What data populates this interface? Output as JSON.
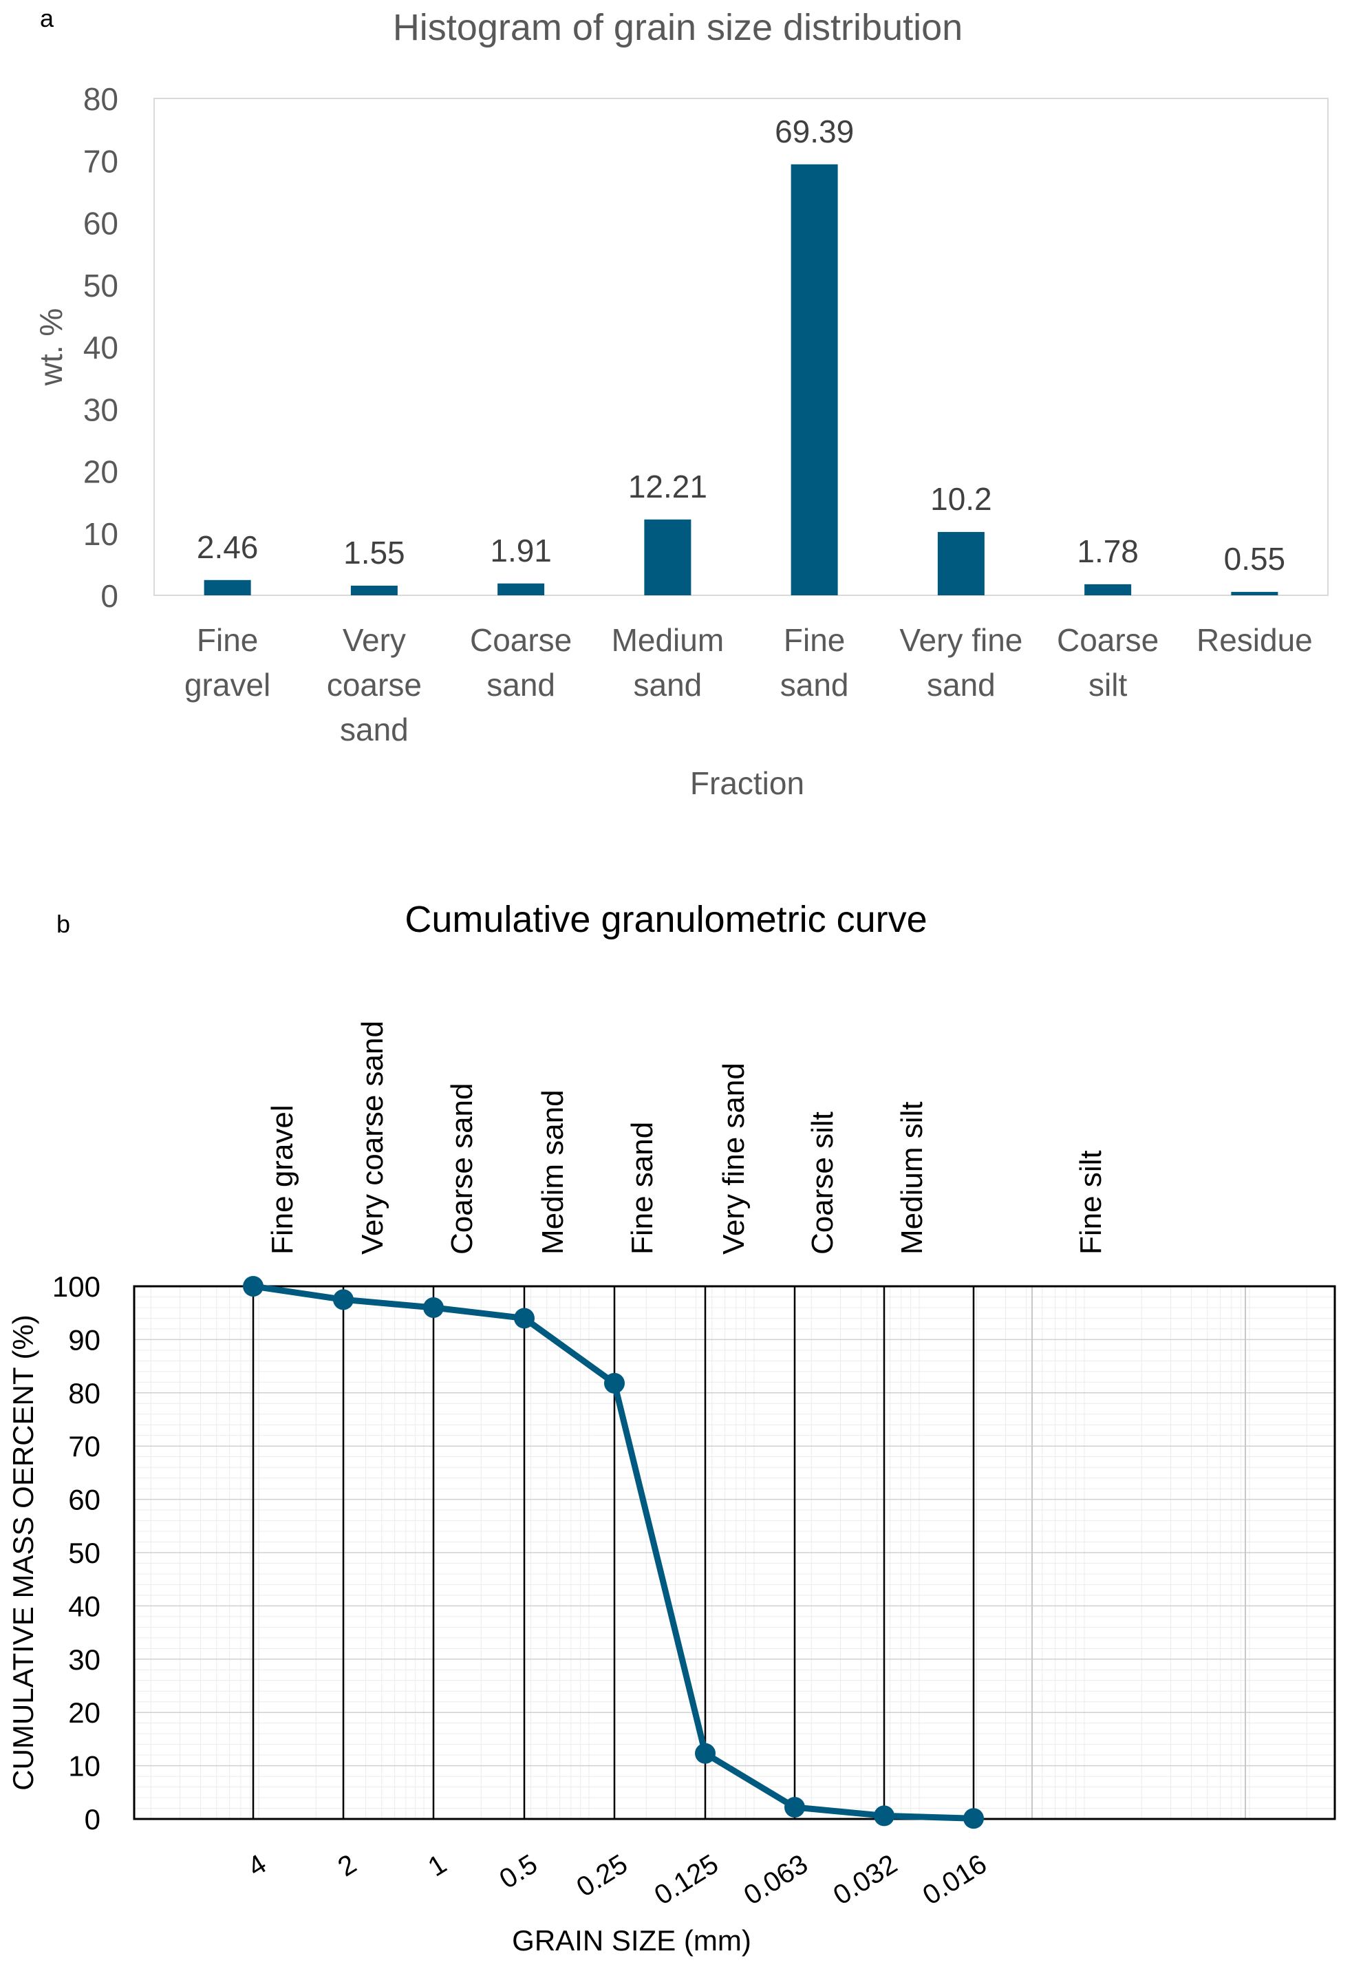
{
  "chart_data": [
    {
      "panel_label": "a",
      "type": "bar",
      "title": "Histogram of grain size distribution",
      "xlabel": "Fraction",
      "ylabel": "wt. %",
      "ylim": [
        0,
        80
      ],
      "yticks": [
        "0",
        "10",
        "20",
        "30",
        "40",
        "50",
        "60",
        "70",
        "80"
      ],
      "categories": [
        [
          "Fine",
          "gravel"
        ],
        [
          "Very",
          "coarse",
          "sand"
        ],
        [
          "Coarse",
          "sand"
        ],
        [
          "Medium",
          "sand"
        ],
        [
          "Fine",
          "sand"
        ],
        [
          "Very fine",
          "sand"
        ],
        [
          "Coarse",
          "silt"
        ],
        [
          "Residue"
        ]
      ],
      "values": [
        2.46,
        1.55,
        1.91,
        12.21,
        69.39,
        10.2,
        1.78,
        0.55
      ],
      "data_labels": [
        "2.46",
        "1.55",
        "1.91",
        "12.21",
        "69.39",
        "10.2",
        "1.78",
        "0.55"
      ],
      "bar_color": "#005a80"
    },
    {
      "panel_label": "b",
      "type": "line",
      "title": "Cumulative granulometric curve",
      "xlabel": "GRAIN SIZE (mm)",
      "ylabel": "CUMULATIVE MASS OERCENT (%)",
      "ylim": [
        0,
        100
      ],
      "yticks": [
        "0",
        "10",
        "20",
        "30",
        "40",
        "50",
        "60",
        "70",
        "80",
        "90",
        "100"
      ],
      "x": [
        "4",
        "2",
        "1",
        "0.5",
        "0.25",
        "0.125",
        "0.063",
        "0.032",
        "0.016"
      ],
      "values": [
        100,
        97.5,
        96,
        94,
        81.8,
        12.3,
        2.2,
        0.6,
        0.1
      ],
      "class_labels": [
        "Fine gravel",
        "Very coarse sand",
        "Coarse sand",
        "Medim sand",
        "Fine sand",
        "Very fine sand",
        "Coarse silt",
        "Medium silt",
        "Fine silt"
      ],
      "line_color": "#005a80"
    }
  ]
}
